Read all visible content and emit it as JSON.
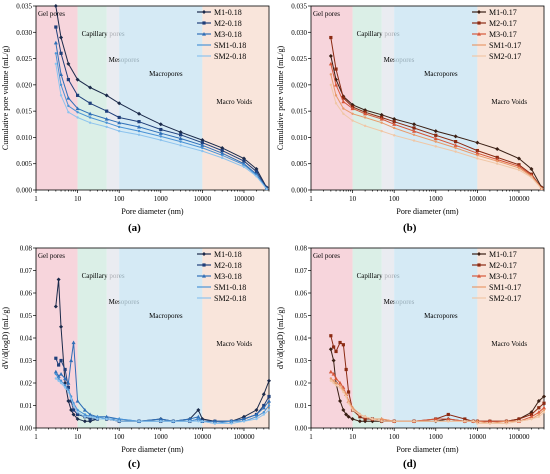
{
  "captions": {
    "a": "(a)",
    "b": "(b)",
    "c": "(c)",
    "d": "(d)"
  },
  "region_colors": [
    "#f4c7d0",
    "#cfeadf",
    "#e3e6ec",
    "#c7e3f2",
    "#f7dccf"
  ],
  "chart_data": [
    {
      "id": "a",
      "type": "line",
      "xlabel": "Pore diameter (nm)",
      "ylabel": "Cumulative pore volume (mL/g)",
      "x_scale": "log",
      "xlim": [
        1,
        400000
      ],
      "ylim": [
        0,
        0.035
      ],
      "xticks": [
        1,
        10,
        100,
        1000,
        10000,
        100000
      ],
      "xtick_labels": [
        "1",
        "10",
        "100",
        "1000",
        "10000",
        "100000"
      ],
      "yticks": [
        0,
        0.005,
        0.01,
        0.015,
        0.02,
        0.025,
        0.03,
        0.035
      ],
      "ytick_labels": [
        "0.000",
        "0.005",
        "0.010",
        "0.015",
        "0.020",
        "0.025",
        "0.030",
        "0.035"
      ],
      "regions": [
        {
          "label": "Gel pores",
          "from": 1,
          "to": 10
        },
        {
          "label": "Capillary pores",
          "from": 10,
          "to": 50
        },
        {
          "label": "Mesopores",
          "from": 50,
          "to": 100
        },
        {
          "label": "Macropores",
          "from": 100,
          "to": 10000
        },
        {
          "label": "Macro Voids",
          "from": 10000,
          "to": 400000
        }
      ],
      "legend_position": "top-right",
      "x": [
        3,
        4,
        6,
        10,
        20,
        50,
        100,
        300,
        1000,
        3000,
        10000,
        30000,
        100000,
        200000,
        350000
      ],
      "series": [
        {
          "name": "M1-0.18",
          "color": "#1b2a4a",
          "marker": "diamond",
          "values": [
            0.035,
            0.029,
            0.024,
            0.021,
            0.0195,
            0.018,
            0.0165,
            0.0145,
            0.0125,
            0.011,
            0.0095,
            0.008,
            0.006,
            0.004,
            0.0005
          ]
        },
        {
          "name": "M2-0.18",
          "color": "#1f3f7a",
          "marker": "square",
          "values": [
            0.031,
            0.026,
            0.021,
            0.018,
            0.0165,
            0.015,
            0.0138,
            0.013,
            0.0115,
            0.0105,
            0.009,
            0.0075,
            0.0055,
            0.0035,
            0.0004
          ]
        },
        {
          "name": "M3-0.18",
          "color": "#2f6fb7",
          "marker": "triangle",
          "values": [
            0.028,
            0.022,
            0.0175,
            0.0155,
            0.0145,
            0.0135,
            0.0128,
            0.012,
            0.0108,
            0.0098,
            0.0085,
            0.007,
            0.005,
            0.003,
            0.0003
          ]
        },
        {
          "name": "SM1-0.18",
          "color": "#4a93d6",
          "marker": "none",
          "values": [
            0.026,
            0.02,
            0.016,
            0.0148,
            0.0138,
            0.0128,
            0.012,
            0.0112,
            0.0102,
            0.0092,
            0.008,
            0.0066,
            0.0048,
            0.0028,
            0.0002
          ]
        },
        {
          "name": "SM2-0.18",
          "color": "#8cc3ee",
          "marker": "none",
          "values": [
            0.024,
            0.018,
            0.0148,
            0.0138,
            0.0128,
            0.012,
            0.0112,
            0.0105,
            0.0095,
            0.0085,
            0.0074,
            0.0061,
            0.0044,
            0.0026,
            0.0002
          ]
        }
      ]
    },
    {
      "id": "b",
      "type": "line",
      "xlabel": "Pore diameter (nm)",
      "ylabel": "Cumulative pore volume (mL/g)",
      "x_scale": "log",
      "xlim": [
        1,
        400000
      ],
      "ylim": [
        0,
        0.035
      ],
      "xticks": [
        1,
        10,
        100,
        1000,
        10000,
        100000
      ],
      "xtick_labels": [
        "1",
        "10",
        "100",
        "1000",
        "10000",
        "100000"
      ],
      "yticks": [
        0,
        0.005,
        0.01,
        0.015,
        0.02,
        0.025,
        0.03,
        0.035
      ],
      "ytick_labels": [
        "0.000",
        "0.005",
        "0.010",
        "0.015",
        "0.020",
        "0.025",
        "0.030",
        "0.035"
      ],
      "regions": [
        {
          "label": "Gel pores",
          "from": 1,
          "to": 10
        },
        {
          "label": "Capillary pores",
          "from": 10,
          "to": 50
        },
        {
          "label": "Mesopores",
          "from": 50,
          "to": 100
        },
        {
          "label": "Macropores",
          "from": 100,
          "to": 10000
        },
        {
          "label": "Macro Voids",
          "from": 10000,
          "to": 400000
        }
      ],
      "legend_position": "top-right",
      "x": [
        3,
        4,
        6,
        10,
        20,
        50,
        100,
        300,
        1000,
        3000,
        10000,
        30000,
        100000,
        200000,
        350000
      ],
      "series": [
        {
          "name": "M1-0.17",
          "color": "#3a1f14",
          "marker": "diamond",
          "values": [
            0.0255,
            0.021,
            0.0178,
            0.0162,
            0.0152,
            0.0143,
            0.0135,
            0.0125,
            0.0112,
            0.0102,
            0.009,
            0.0078,
            0.006,
            0.004,
            0.0005
          ]
        },
        {
          "name": "M2-0.17",
          "color": "#8b2a12",
          "marker": "square",
          "values": [
            0.029,
            0.023,
            0.0175,
            0.0158,
            0.0148,
            0.0138,
            0.013,
            0.0118,
            0.0104,
            0.0092,
            0.0075,
            0.0062,
            0.0048,
            0.003,
            0.0004
          ]
        },
        {
          "name": "M3-0.17",
          "color": "#d6573a",
          "marker": "triangle",
          "values": [
            0.024,
            0.02,
            0.0168,
            0.0155,
            0.0145,
            0.0135,
            0.0125,
            0.0112,
            0.0098,
            0.0085,
            0.007,
            0.0058,
            0.0045,
            0.0028,
            0.0003
          ]
        },
        {
          "name": "SM1-0.17",
          "color": "#e89a6a",
          "marker": "none",
          "values": [
            0.022,
            0.018,
            0.0155,
            0.0145,
            0.0138,
            0.0128,
            0.0118,
            0.0105,
            0.0092,
            0.008,
            0.0066,
            0.0055,
            0.0042,
            0.0026,
            0.0003
          ]
        },
        {
          "name": "SM2-0.17",
          "color": "#f0c7a6",
          "marker": "none",
          "values": [
            0.02,
            0.0165,
            0.0145,
            0.0132,
            0.0122,
            0.0112,
            0.0104,
            0.0094,
            0.0083,
            0.0073,
            0.006,
            0.005,
            0.0038,
            0.0024,
            0.0002
          ]
        }
      ]
    },
    {
      "id": "c",
      "type": "line",
      "xlabel": "Pore diameter (nm)",
      "ylabel": "dV/d(logD) (mL/g)",
      "x_scale": "log",
      "xlim": [
        1,
        400000
      ],
      "ylim": [
        0,
        0.08
      ],
      "xticks": [
        1,
        10,
        100,
        1000,
        10000,
        100000
      ],
      "xtick_labels": [
        "1",
        "10",
        "100",
        "1000",
        "10000",
        "100000"
      ],
      "yticks": [
        0,
        0.01,
        0.02,
        0.03,
        0.04,
        0.05,
        0.06,
        0.07,
        0.08
      ],
      "ytick_labels": [
        "0.00",
        "0.01",
        "0.02",
        "0.03",
        "0.04",
        "0.05",
        "0.06",
        "0.07",
        "0.08"
      ],
      "regions": [
        {
          "label": "Gel pores",
          "from": 1,
          "to": 10
        },
        {
          "label": "Capillary pores",
          "from": 10,
          "to": 50
        },
        {
          "label": "Mesopores",
          "from": 50,
          "to": 100
        },
        {
          "label": "Macropores",
          "from": 100,
          "to": 10000
        },
        {
          "label": "Macro Voids",
          "from": 10000,
          "to": 400000
        }
      ],
      "legend_position": "top-right",
      "x": [
        3,
        3.5,
        4,
        5,
        6,
        7,
        8,
        10,
        15,
        20,
        30,
        50,
        100,
        300,
        1000,
        2000,
        5000,
        8000,
        10000,
        20000,
        50000,
        100000,
        200000,
        300000,
        400000
      ],
      "series": [
        {
          "name": "M1-0.18",
          "color": "#1b2a4a",
          "marker": "diamond",
          "values": [
            0.054,
            0.066,
            0.045,
            0.02,
            0.012,
            0.008,
            0.006,
            0.004,
            0.003,
            0.003,
            0.004,
            0.004,
            0.003,
            0.003,
            0.004,
            0.003,
            0.004,
            0.008,
            0.004,
            0.003,
            0.003,
            0.005,
            0.008,
            0.015,
            0.021
          ]
        },
        {
          "name": "M2-0.18",
          "color": "#1f3f7a",
          "marker": "square",
          "values": [
            0.031,
            0.028,
            0.03,
            0.026,
            0.018,
            0.012,
            0.008,
            0.006,
            0.005,
            0.004,
            0.004,
            0.004,
            0.003,
            0.003,
            0.003,
            0.003,
            0.003,
            0.004,
            0.003,
            0.003,
            0.003,
            0.004,
            0.006,
            0.01,
            0.014
          ]
        },
        {
          "name": "M3-0.18",
          "color": "#2f6fb7",
          "marker": "triangle",
          "values": [
            0.025,
            0.023,
            0.024,
            0.022,
            0.02,
            0.03,
            0.038,
            0.012,
            0.008,
            0.006,
            0.005,
            0.005,
            0.004,
            0.003,
            0.004,
            0.003,
            0.004,
            0.005,
            0.003,
            0.003,
            0.003,
            0.004,
            0.006,
            0.009,
            0.012
          ]
        },
        {
          "name": "SM1-0.18",
          "color": "#4a93d6",
          "marker": "none",
          "values": [
            0.024,
            0.022,
            0.021,
            0.019,
            0.017,
            0.014,
            0.011,
            0.008,
            0.006,
            0.005,
            0.005,
            0.004,
            0.004,
            0.003,
            0.003,
            0.003,
            0.003,
            0.004,
            0.003,
            0.002,
            0.003,
            0.003,
            0.005,
            0.007,
            0.01
          ]
        },
        {
          "name": "SM2-0.18",
          "color": "#8cc3ee",
          "marker": "none",
          "values": [
            0.022,
            0.021,
            0.02,
            0.018,
            0.016,
            0.013,
            0.01,
            0.007,
            0.005,
            0.005,
            0.004,
            0.004,
            0.003,
            0.003,
            0.003,
            0.003,
            0.003,
            0.003,
            0.003,
            0.002,
            0.002,
            0.003,
            0.004,
            0.006,
            0.008
          ]
        }
      ]
    },
    {
      "id": "d",
      "type": "line",
      "xlabel": "Pore diameter (nm)",
      "ylabel": "dV/d(logD) (mL/g)",
      "x_scale": "log",
      "xlim": [
        1,
        400000
      ],
      "ylim": [
        0,
        0.08
      ],
      "xticks": [
        1,
        10,
        100,
        1000,
        10000,
        100000
      ],
      "xtick_labels": [
        "1",
        "10",
        "100",
        "1000",
        "10000",
        "100000"
      ],
      "yticks": [
        0,
        0.01,
        0.02,
        0.03,
        0.04,
        0.05,
        0.06,
        0.07,
        0.08
      ],
      "ytick_labels": [
        "0.00",
        "0.01",
        "0.02",
        "0.03",
        "0.04",
        "0.05",
        "0.06",
        "0.07",
        "0.08"
      ],
      "regions": [
        {
          "label": "Gel pores",
          "from": 1,
          "to": 10
        },
        {
          "label": "Capillary pores",
          "from": 10,
          "to": 50
        },
        {
          "label": "Mesopores",
          "from": 50,
          "to": 100
        },
        {
          "label": "Macropores",
          "from": 100,
          "to": 10000
        },
        {
          "label": "Macro Voids",
          "from": 10000,
          "to": 400000
        }
      ],
      "legend_position": "top-right",
      "x": [
        3,
        3.5,
        4,
        5,
        6,
        7,
        8,
        10,
        15,
        20,
        30,
        50,
        100,
        300,
        1000,
        2000,
        5000,
        8000,
        10000,
        20000,
        50000,
        100000,
        200000,
        300000,
        400000
      ],
      "series": [
        {
          "name": "M1-0.17",
          "color": "#3a1f14",
          "marker": "diamond",
          "values": [
            0.035,
            0.03,
            0.02,
            0.012,
            0.008,
            0.006,
            0.005,
            0.004,
            0.003,
            0.003,
            0.003,
            0.003,
            0.003,
            0.003,
            0.003,
            0.004,
            0.003,
            0.003,
            0.003,
            0.003,
            0.003,
            0.004,
            0.007,
            0.012,
            0.014
          ]
        },
        {
          "name": "M2-0.17",
          "color": "#8b2a12",
          "marker": "square",
          "values": [
            0.041,
            0.036,
            0.034,
            0.038,
            0.037,
            0.026,
            0.016,
            0.008,
            0.005,
            0.004,
            0.004,
            0.003,
            0.003,
            0.003,
            0.004,
            0.006,
            0.004,
            0.003,
            0.003,
            0.003,
            0.003,
            0.004,
            0.006,
            0.009,
            0.011
          ]
        },
        {
          "name": "M3-0.17",
          "color": "#d6573a",
          "marker": "triangle",
          "values": [
            0.025,
            0.024,
            0.022,
            0.02,
            0.018,
            0.015,
            0.012,
            0.009,
            0.006,
            0.005,
            0.004,
            0.004,
            0.003,
            0.003,
            0.004,
            0.004,
            0.003,
            0.003,
            0.003,
            0.003,
            0.003,
            0.003,
            0.005,
            0.007,
            0.009
          ]
        },
        {
          "name": "SM1-0.17",
          "color": "#e89a6a",
          "marker": "none",
          "values": [
            0.022,
            0.021,
            0.02,
            0.019,
            0.017,
            0.015,
            0.012,
            0.009,
            0.006,
            0.005,
            0.004,
            0.004,
            0.003,
            0.003,
            0.003,
            0.003,
            0.003,
            0.003,
            0.003,
            0.002,
            0.003,
            0.003,
            0.004,
            0.006,
            0.008
          ]
        },
        {
          "name": "SM2-0.17",
          "color": "#f0c7a6",
          "marker": "none",
          "values": [
            0.021,
            0.02,
            0.019,
            0.018,
            0.016,
            0.014,
            0.011,
            0.008,
            0.006,
            0.005,
            0.004,
            0.003,
            0.003,
            0.003,
            0.003,
            0.003,
            0.003,
            0.003,
            0.002,
            0.002,
            0.002,
            0.003,
            0.004,
            0.005,
            0.007
          ]
        }
      ]
    }
  ]
}
